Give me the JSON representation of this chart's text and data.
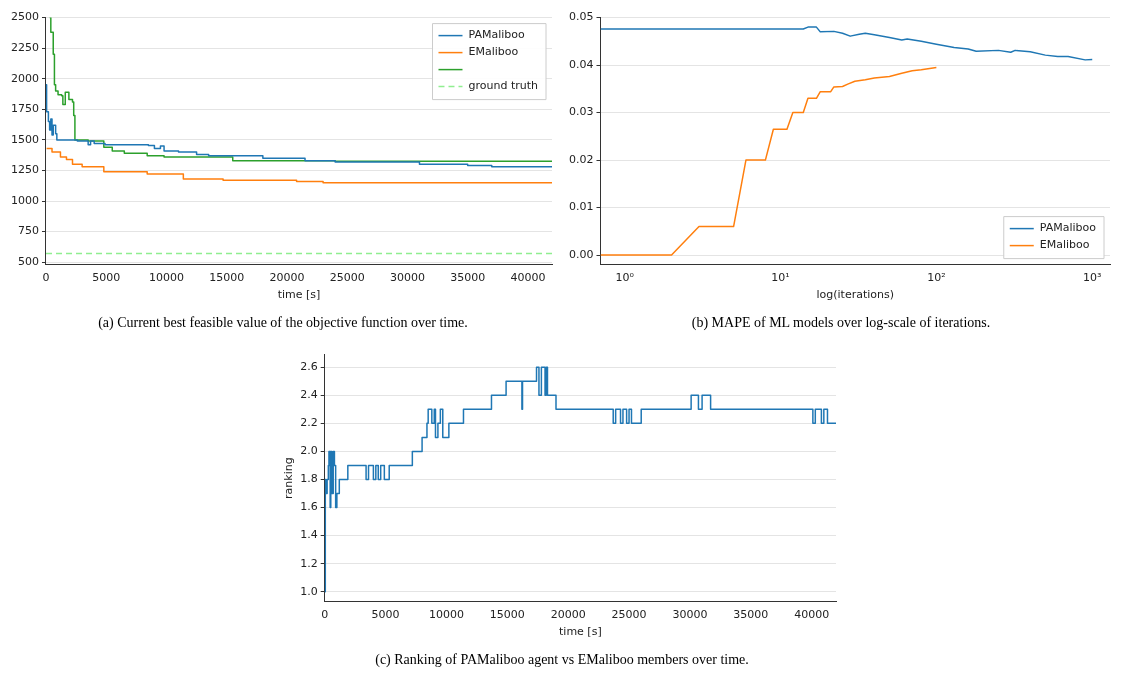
{
  "chart_data": [
    {
      "type": "step",
      "xlabel": "time [s]",
      "xlim": [
        0,
        42000
      ],
      "xticks": [
        0,
        5000,
        10000,
        15000,
        20000,
        25000,
        30000,
        35000,
        40000
      ],
      "ylim": [
        480,
        2500
      ],
      "yticks": [
        500,
        750,
        1000,
        1250,
        1500,
        1750,
        2000,
        2250,
        2500
      ],
      "grid": "y",
      "legend": "top right",
      "annotations": [
        "(a) Current best feasible value of the objective function over time."
      ],
      "ref_lines": [
        {
          "axis": "y",
          "value": 570,
          "label": "ground truth",
          "color": "#90ee90",
          "line_style": "dashed"
        }
      ],
      "series": [
        {
          "name": "PAMaliboo",
          "color": "#1f77b4",
          "x": [
            0,
            50,
            200,
            300,
            400,
            500,
            600,
            800,
            900,
            2500,
            2600,
            3500,
            3700,
            4000,
            4900,
            8500,
            9000,
            9500,
            9800,
            11000,
            12500,
            13500,
            18000,
            21500,
            24000,
            31000,
            35000,
            37000,
            42000
          ],
          "values": [
            1950,
            1730,
            1650,
            1580,
            1670,
            1540,
            1620,
            1550,
            1500,
            1500,
            1490,
            1460,
            1490,
            1470,
            1460,
            1455,
            1430,
            1450,
            1410,
            1400,
            1380,
            1370,
            1350,
            1330,
            1320,
            1300,
            1290,
            1280,
            1275
          ]
        },
        {
          "name": "EMaliboo",
          "color": "#ff7f0e",
          "x": [
            50,
            500,
            1200,
            1700,
            2200,
            3000,
            4800,
            8400,
            11400,
            14700,
            20800,
            23000,
            42000
          ],
          "values": [
            1430,
            1400,
            1360,
            1340,
            1300,
            1280,
            1240,
            1220,
            1180,
            1170,
            1160,
            1150,
            1150
          ]
        },
        {
          "color": "#2ca02c",
          "x": [
            300,
            400,
            600,
            700,
            800,
            1000,
            1300,
            1400,
            1600,
            1900,
            2200,
            2300,
            2400,
            3500,
            4800,
            5500,
            6500,
            8400,
            9800,
            15500,
            24000,
            42000
          ],
          "values": [
            2500,
            2380,
            2200,
            1950,
            1900,
            1870,
            1860,
            1790,
            1890,
            1830,
            1810,
            1700,
            1500,
            1490,
            1440,
            1410,
            1390,
            1370,
            1360,
            1330,
            1325,
            1325
          ]
        }
      ]
    },
    {
      "type": "line",
      "xlabel": "log(iterations)",
      "log": "x",
      "xlim": [
        0.7,
        1300
      ],
      "xticks": [
        {
          "value": 1,
          "label": "10⁰"
        },
        {
          "value": 10,
          "label": "10¹"
        },
        {
          "value": 100,
          "label": "10²"
        },
        {
          "value": 1000,
          "label": "10³"
        }
      ],
      "ylim": [
        -0.002,
        0.05
      ],
      "yticks": [
        {
          "value": 0,
          "label": "0.00"
        },
        {
          "value": 0.01,
          "label": "0.01"
        },
        {
          "value": 0.02,
          "label": "0.02"
        },
        {
          "value": 0.03,
          "label": "0.03"
        },
        {
          "value": 0.04,
          "label": "0.04"
        },
        {
          "value": 0.05,
          "label": "0.05"
        }
      ],
      "grid": "y",
      "legend": "bottom right",
      "annotations": [
        "(b) MAPE of ML models over log-scale of iterations."
      ],
      "series": [
        {
          "name": "PAMaliboo",
          "color": "#1f77b4",
          "x": [
            0.7,
            14,
            15,
            17,
            18,
            22,
            25,
            28,
            32,
            35,
            40,
            50,
            60,
            65,
            80,
            100,
            130,
            160,
            180,
            250,
            300,
            320,
            400,
            500,
            600,
            700,
            900,
            1000
          ],
          "values": [
            0.0476,
            0.0476,
            0.048,
            0.048,
            0.047,
            0.0471,
            0.0467,
            0.0461,
            0.0465,
            0.0467,
            0.0464,
            0.0458,
            0.0453,
            0.0455,
            0.045,
            0.0444,
            0.0437,
            0.0434,
            0.0429,
            0.0431,
            0.0427,
            0.0431,
            0.0428,
            0.0421,
            0.0418,
            0.0418,
            0.0411,
            0.0412
          ]
        },
        {
          "name": "EMaliboo",
          "color": "#ff7f0e",
          "x": [
            0.7,
            2,
            3,
            5,
            6,
            8,
            9,
            11,
            12,
            14,
            15,
            17,
            18,
            21,
            22,
            25,
            27,
            30,
            35,
            40,
            50,
            60,
            70,
            80,
            100
          ],
          "values": [
            0,
            0,
            0.006,
            0.006,
            0.02,
            0.02,
            0.0265,
            0.0265,
            0.03,
            0.03,
            0.033,
            0.033,
            0.0344,
            0.0344,
            0.0354,
            0.0355,
            0.036,
            0.0366,
            0.0369,
            0.0373,
            0.0376,
            0.0383,
            0.0388,
            0.039,
            0.0395
          ]
        }
      ]
    },
    {
      "type": "step",
      "xlabel": "time [s]",
      "ylabel": "ranking",
      "xlim": [
        0,
        42000
      ],
      "xticks": [
        0,
        5000,
        10000,
        15000,
        20000,
        25000,
        30000,
        35000,
        40000
      ],
      "ylim": [
        0.93,
        2.69
      ],
      "yticks": [
        {
          "value": 1,
          "label": "1.0"
        },
        {
          "value": 1.2,
          "label": "1.2"
        },
        {
          "value": 1.4,
          "label": "1.4"
        },
        {
          "value": 1.6,
          "label": "1.6"
        },
        {
          "value": 1.8,
          "label": "1.8"
        },
        {
          "value": 2,
          "label": "2.0"
        },
        {
          "value": 2.2,
          "label": "2.2"
        },
        {
          "value": 2.4,
          "label": "2.4"
        },
        {
          "value": 2.6,
          "label": "2.6"
        }
      ],
      "grid": "y",
      "annotations": [
        "(c) Ranking of PAMaliboo agent vs EMaliboo members over time."
      ],
      "series": [
        {
          "color": "#1f77b4",
          "x": [
            0,
            50,
            100,
            200,
            300,
            350,
            450,
            500,
            600,
            700,
            800,
            900,
            1000,
            1200,
            1900,
            3400,
            3600,
            4000,
            4200,
            4400,
            4600,
            4900,
            5300,
            7200,
            8000,
            8400,
            8500,
            8800,
            9000,
            9100,
            9300,
            9500,
            9700,
            10200,
            11400,
            13700,
            14900,
            16200,
            16250,
            17400,
            17600,
            17800,
            18100,
            18200,
            18300,
            19000,
            23700,
            23900,
            24300,
            24500,
            24800,
            25000,
            25200,
            26000,
            30100,
            30700,
            31000,
            31700,
            40100,
            40300,
            40800,
            41000,
            41300,
            42000
          ],
          "values": [
            1.0,
            1.8,
            1.7,
            1.8,
            1.9,
            2.0,
            1.6,
            2.0,
            1.7,
            2.0,
            1.9,
            1.6,
            1.7,
            1.8,
            1.9,
            1.8,
            1.9,
            1.8,
            1.9,
            1.8,
            1.9,
            1.8,
            1.9,
            2.0,
            2.1,
            2.2,
            2.3,
            2.2,
            2.3,
            2.1,
            2.2,
            2.3,
            2.1,
            2.2,
            2.3,
            2.4,
            2.5,
            2.3,
            2.5,
            2.6,
            2.4,
            2.6,
            2.4,
            2.6,
            2.4,
            2.3,
            2.2,
            2.3,
            2.2,
            2.3,
            2.2,
            2.3,
            2.2,
            2.3,
            2.4,
            2.3,
            2.4,
            2.3,
            2.2,
            2.3,
            2.2,
            2.3,
            2.2,
            2.2
          ]
        }
      ]
    }
  ]
}
